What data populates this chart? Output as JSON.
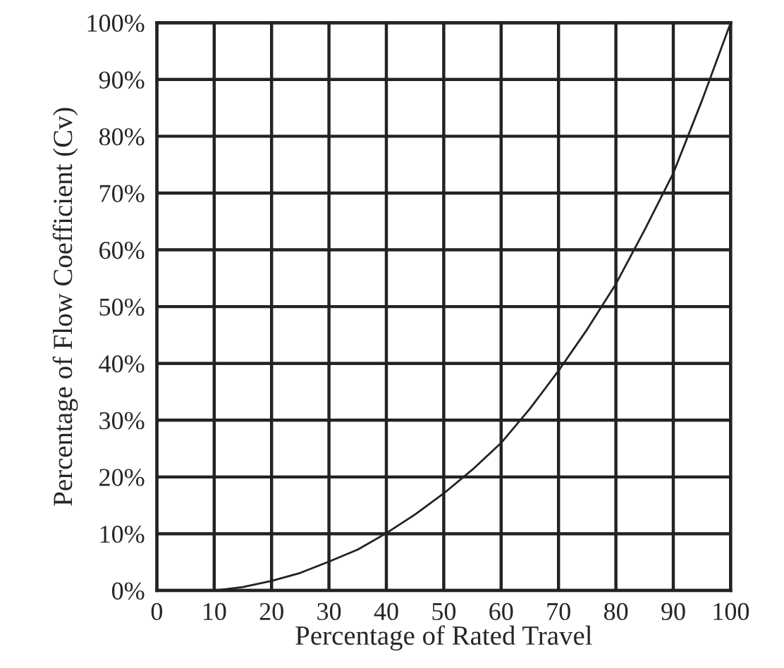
{
  "chart_data": {
    "type": "line",
    "xlabel": "Percentage of Rated Travel",
    "ylabel": "Percentage of Flow Coefficient (Cv)",
    "x": [
      0,
      5,
      10,
      15,
      20,
      25,
      30,
      35,
      40,
      45,
      50,
      55,
      60,
      65,
      70,
      75,
      80,
      85,
      90,
      95,
      100
    ],
    "series": [
      {
        "color": "#222222",
        "values": [
          0,
          0,
          0,
          0.6,
          1.7,
          3.1,
          5.1,
          7.2,
          10.1,
          13.4,
          17.1,
          21.3,
          26,
          32,
          38.7,
          46,
          54,
          63.5,
          73.5,
          86.3,
          100
        ]
      }
    ],
    "xlim": [
      0,
      100
    ],
    "ylim": [
      0,
      100
    ],
    "xticks": [
      0,
      10,
      20,
      30,
      40,
      50,
      60,
      70,
      80,
      90,
      100
    ],
    "yticks": [
      {
        "value": 0,
        "label": "0%"
      },
      {
        "value": 10,
        "label": "10%"
      },
      {
        "value": 20,
        "label": "20%"
      },
      {
        "value": 30,
        "label": "30%"
      },
      {
        "value": 40,
        "label": "40%"
      },
      {
        "value": 50,
        "label": "50%"
      },
      {
        "value": 60,
        "label": "60%"
      },
      {
        "value": 70,
        "label": "70%"
      },
      {
        "value": 80,
        "label": "80%"
      },
      {
        "value": 90,
        "label": "90%"
      },
      {
        "value": 100,
        "label": "100%"
      }
    ],
    "grid": true,
    "marker": "none",
    "line_style": "solid"
  }
}
